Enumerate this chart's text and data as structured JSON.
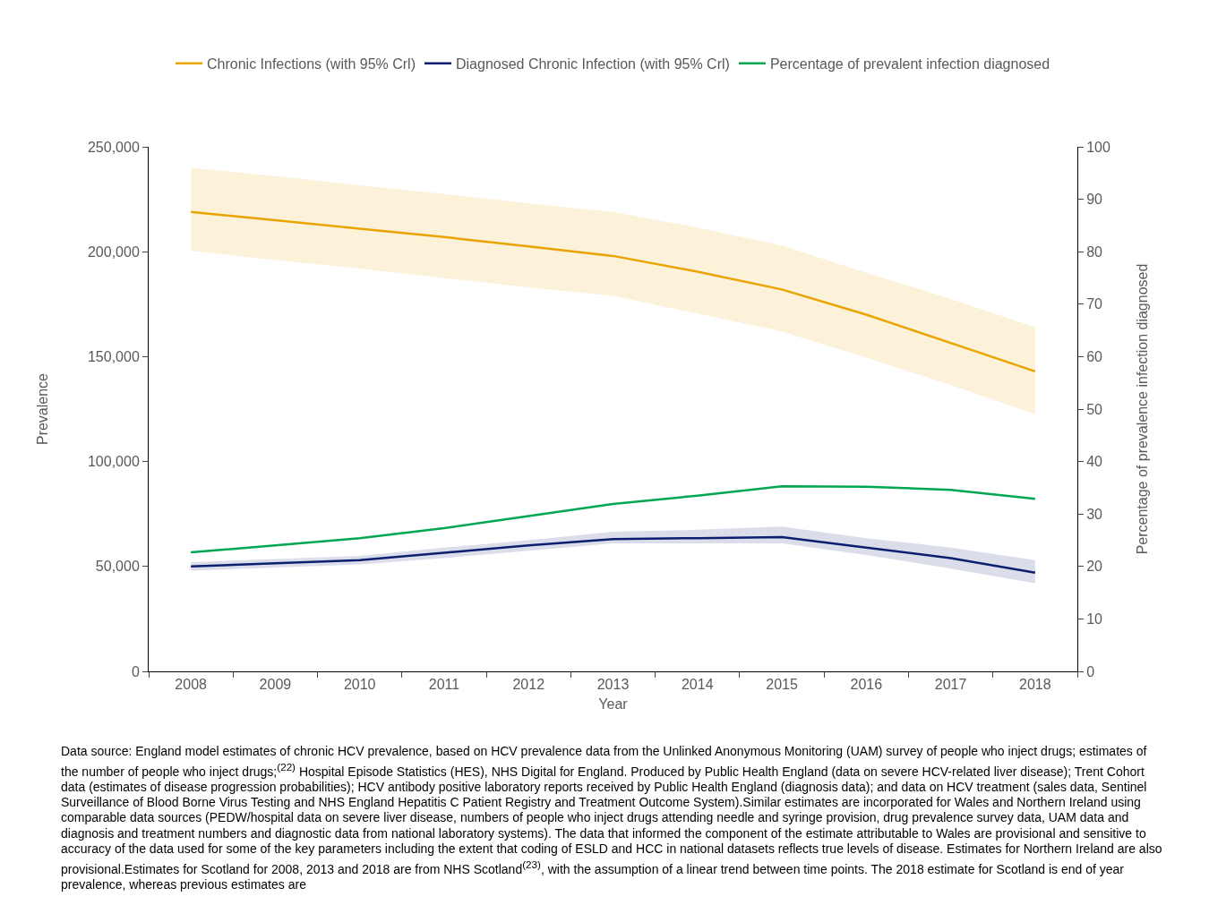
{
  "chart_data": {
    "type": "line",
    "xlabel": "Year",
    "ylabel": "Prevalence",
    "y2label": "Percentage of prevalence infection diagnosed",
    "categories": [
      "2008",
      "2009",
      "2010",
      "2011",
      "2012",
      "2013",
      "2014",
      "2015",
      "2016",
      "2017",
      "2018"
    ],
    "series": [
      {
        "name": "Chronic Infections (with 95% Crl)",
        "color": "#eaa400",
        "values": [
          219000,
          215000,
          211000,
          207000,
          202500,
          198000,
          190500,
          182000,
          170000,
          156500,
          143000
        ],
        "lower": [
          200500,
          196000,
          192000,
          187500,
          183000,
          179000,
          170500,
          162000,
          149500,
          136500,
          122500
        ],
        "upper": [
          240000,
          236000,
          231500,
          227500,
          223000,
          219000,
          211500,
          203000,
          190000,
          177500,
          164000
        ]
      },
      {
        "name": "Diagnosed Chronic Infection (with 95% Crl)",
        "color": "#0c1f6f",
        "values": [
          50000,
          51500,
          53000,
          56500,
          60000,
          63000,
          63500,
          64000,
          59000,
          54000,
          47000
        ],
        "lower": [
          48000,
          49500,
          51000,
          54000,
          57500,
          61000,
          61000,
          61000,
          55500,
          49000,
          42000
        ],
        "upper": [
          52000,
          53500,
          55000,
          59000,
          62500,
          66500,
          67500,
          69000,
          63500,
          59000,
          53000
        ]
      },
      {
        "name": "Percentage of prevalent infection diagnosed",
        "color": "#00a651",
        "axis": "y2",
        "values": [
          22.7,
          24.0,
          25.4,
          27.3,
          29.6,
          31.9,
          33.5,
          35.3,
          35.2,
          34.6,
          32.9
        ]
      }
    ],
    "ylim": [
      0,
      250000
    ],
    "yticks": [
      0,
      {
        "value": 50000,
        "label": "50,000"
      },
      {
        "value": 100000,
        "label": "100,000"
      },
      {
        "value": 150000,
        "label": "150,000"
      },
      {
        "value": 200000,
        "label": "200,000"
      },
      {
        "value": 250000,
        "label": "250,000"
      }
    ],
    "y2lim": [
      0,
      100
    ],
    "y2ticks": [
      0,
      10,
      20,
      30,
      40,
      50,
      60,
      70,
      80,
      90,
      100
    ],
    "legend": "top",
    "grid": false,
    "marker": "none",
    "line_style": "solid",
    "annotations": [
      "Data  source: England model estimates of chronic HCV prevalence, based on HCV prevalence data from the Unlinked Anonymous Monitoring (UAM) survey of people who inject drugs; estimates of the number of people who inject drugs;$^{(22)}$ Hospital Episode Statistics (HES), NHS Digital for England. Produced by Public Health England (data on severe HCV-related liver disease); Trent Cohort data (estimates of disease progression probabilities); HCV antibody positive laboratory reports received by Public Health England (diagnosis data); and data on HCV treatment (sales data, Sentinel Surveillance of Blood Borne Virus Testing and NHS England Hepatitis C Patient Registry and Treatment Outcome System).Similar estimates are incorporated for Wales and Northern Ireland using comparable data sources (PEDW/hospital data on severe liver disease, numbers of people who inject drugs attending needle and syringe provision, drug prevalence survey data, UAM data and diagnosis and treatment numbers and diagnostic data from national laboratory systems). The data that informed the component of the estimate attributable to Wales are provisional and sensitive to accuracy of the data used for some of the key parameters including the extent that coding of ESLD and HCC in national datasets reflects true levels of disease. Estimates for Northern Ireland are also provisional.Estimates for Scotland for 2008, 2013 and 2018 are from NHS Scotland$^{(23)}$, with the assumption of a linear trend between time points. The 2018 estimate for Scotland is end of year prevalence, whereas previous estimates are"
    ]
  }
}
